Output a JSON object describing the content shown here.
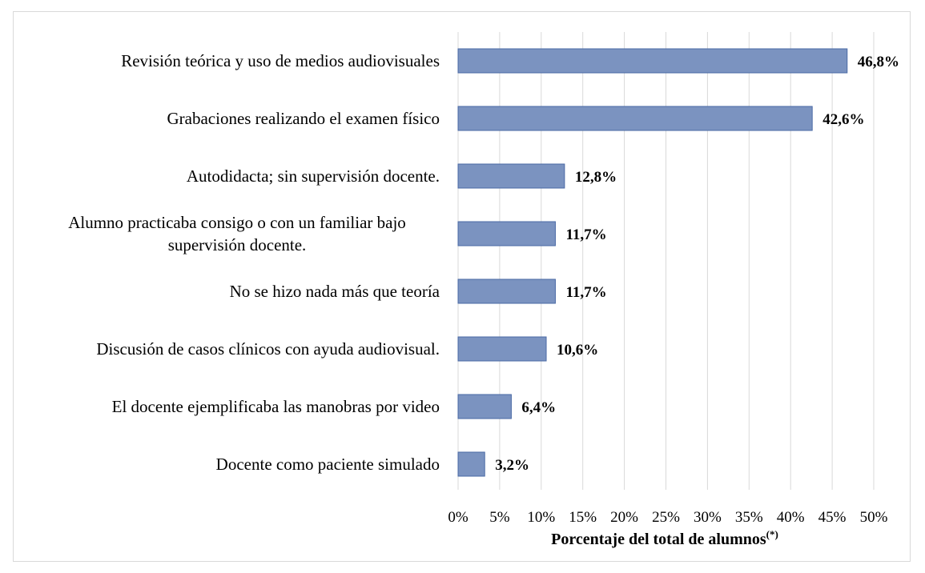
{
  "chart_data": {
    "type": "bar",
    "orientation": "horizontal",
    "categories": [
      "Revisión teórica y uso de medios audiovisuales",
      "Grabaciones realizando el examen físico",
      "Autodidacta; sin supervisión docente.",
      "Alumno practicaba consigo o con un familiar bajo supervisión docente.",
      "No se hizo nada más que teoría",
      "Discusión de casos clínicos con ayuda audiovisual.",
      "El docente ejemplificaba las manobras por video",
      "Docente como paciente simulado"
    ],
    "category_lines": [
      [
        "Revisión teórica y uso de medios audiovisuales"
      ],
      [
        "Grabaciones realizando el examen físico"
      ],
      [
        "Autodidacta; sin supervisión docente."
      ],
      [
        "Alumno practicaba consigo o con un familiar bajo",
        "supervisión docente."
      ],
      [
        "No se hizo nada más que teoría"
      ],
      [
        "Discusión de casos clínicos con ayuda audiovisual."
      ],
      [
        "El docente ejemplificaba las manobras por video"
      ],
      [
        "Docente como paciente simulado"
      ]
    ],
    "values": [
      46.8,
      42.6,
      12.8,
      11.7,
      11.7,
      10.6,
      6.4,
      3.2
    ],
    "data_labels": [
      "46,8%",
      "42,6%",
      "12,8%",
      "11,7%",
      "11,7%",
      "10,6%",
      "6,4%",
      "3,2%"
    ],
    "xlim": [
      0,
      50
    ],
    "xticks": [
      0,
      5,
      10,
      15,
      20,
      25,
      30,
      35,
      40,
      45,
      50
    ],
    "xtick_labels": [
      "0%",
      "5%",
      "10%",
      "15%",
      "20%",
      "25%",
      "30%",
      "35%",
      "40%",
      "45%",
      "50%"
    ],
    "xlabel": "Porcentaje del total de alumnos",
    "xlabel_superscript": "(*)",
    "grid": "vertical",
    "bar_color": "#7b93c0",
    "bar_edge_color": "#4a6aa5"
  }
}
